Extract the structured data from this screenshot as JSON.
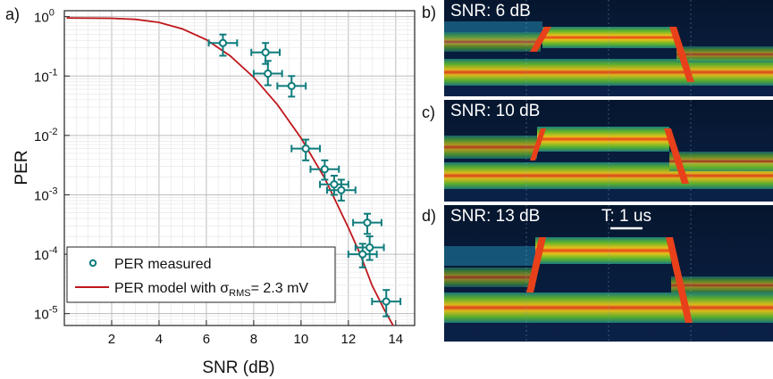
{
  "chart_data": [
    {
      "type": "scatter",
      "panel_label": "a)",
      "xlabel": "SNR (dB)",
      "ylabel": "PER",
      "xlim": [
        0,
        14.8
      ],
      "ylim_log10": [
        -5.2,
        0.1
      ],
      "y_scale": "log",
      "grid": true,
      "legend_position": "bottom-left",
      "x_ticks": [
        2,
        4,
        6,
        8,
        10,
        12,
        14
      ],
      "y_ticks": [
        {
          "mant": "10",
          "exp": "0"
        },
        {
          "mant": "10",
          "exp": "-1"
        },
        {
          "mant": "10",
          "exp": "-2"
        },
        {
          "mant": "10",
          "exp": "-3"
        },
        {
          "mant": "10",
          "exp": "-4"
        },
        {
          "mant": "10",
          "exp": "-5"
        }
      ],
      "series": [
        {
          "name": "PER measured",
          "color": "#0f7c7c",
          "marker": "open-circle",
          "points": [
            {
              "x": 6.7,
              "y": 0.36,
              "xerr": 0.6,
              "ylo": 0.22,
              "yhi": 0.5
            },
            {
              "x": 8.5,
              "y": 0.25,
              "xerr": 0.6,
              "ylo": 0.16,
              "yhi": 0.36
            },
            {
              "x": 8.6,
              "y": 0.11,
              "xerr": 0.6,
              "ylo": 0.07,
              "yhi": 0.18
            },
            {
              "x": 9.6,
              "y": 0.068,
              "xerr": 0.6,
              "ylo": 0.045,
              "yhi": 0.1
            },
            {
              "x": 10.2,
              "y": 0.006,
              "xerr": 0.6,
              "ylo": 0.0038,
              "yhi": 0.0085
            },
            {
              "x": 11.0,
              "y": 0.0027,
              "xerr": 0.6,
              "ylo": 0.0018,
              "yhi": 0.0038
            },
            {
              "x": 11.4,
              "y": 0.0015,
              "xerr": 0.6,
              "ylo": 0.001,
              "yhi": 0.0021
            },
            {
              "x": 11.7,
              "y": 0.0012,
              "xerr": 0.6,
              "ylo": 0.0008,
              "yhi": 0.0018
            },
            {
              "x": 12.6,
              "y": 0.0001,
              "xerr": 0.6,
              "ylo": 6e-05,
              "yhi": 0.00015
            },
            {
              "x": 12.8,
              "y": 0.00034,
              "xerr": 0.6,
              "ylo": 0.00022,
              "yhi": 0.00048
            },
            {
              "x": 12.9,
              "y": 0.00013,
              "xerr": 0.6,
              "ylo": 8e-05,
              "yhi": 0.0002
            },
            {
              "x": 13.6,
              "y": 1.6e-05,
              "xerr": 0.6,
              "ylo": 9e-06,
              "yhi": 2.5e-05
            }
          ]
        },
        {
          "name_prefix": "PER model with σ",
          "name_sub": "RMS",
          "name_suffix": "= 2.3 mV",
          "color": "#c0171c",
          "type": "line",
          "points": [
            {
              "x": 0.1,
              "y": 0.95
            },
            {
              "x": 2,
              "y": 0.94
            },
            {
              "x": 3,
              "y": 0.9
            },
            {
              "x": 4,
              "y": 0.8
            },
            {
              "x": 5,
              "y": 0.62
            },
            {
              "x": 6,
              "y": 0.41
            },
            {
              "x": 7,
              "y": 0.22
            },
            {
              "x": 8,
              "y": 0.095
            },
            {
              "x": 9,
              "y": 0.033
            },
            {
              "x": 10,
              "y": 0.009
            },
            {
              "x": 11,
              "y": 0.0019
            },
            {
              "x": 12,
              "y": 0.00028
            },
            {
              "x": 12.5,
              "y": 0.0001
            },
            {
              "x": 13,
              "y": 3e-05
            },
            {
              "x": 13.5,
              "y": 1.2e-05
            },
            {
              "x": 13.9,
              "y": 6.2e-06
            }
          ]
        }
      ]
    }
  ],
  "panels": [
    {
      "letter": "b)",
      "label": "SNR: 6 dB"
    },
    {
      "letter": "c)",
      "label": "SNR: 10 dB"
    },
    {
      "letter": "d)",
      "label": "SNR: 13 dB",
      "scale_label": "T: 1 us"
    }
  ]
}
